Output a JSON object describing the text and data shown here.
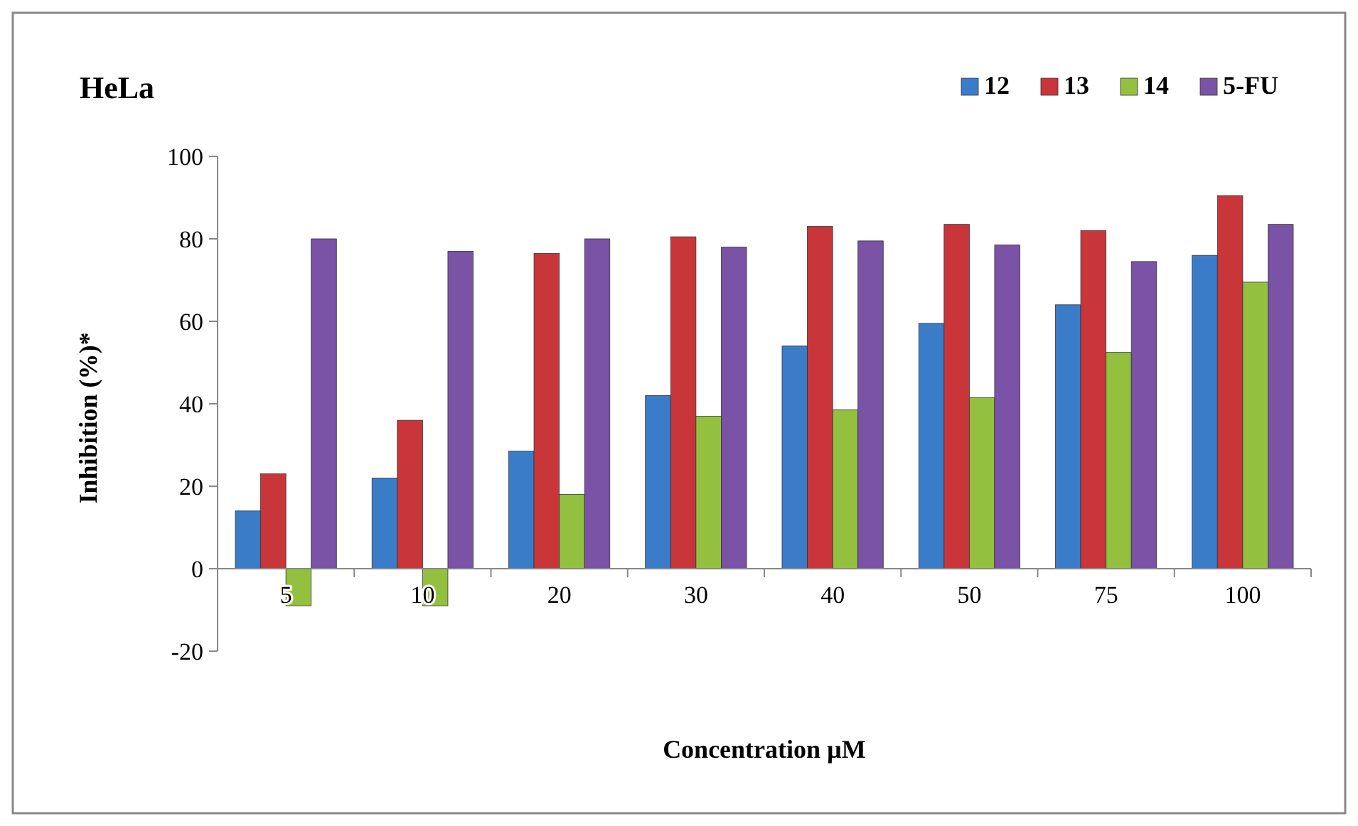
{
  "chart_data": {
    "type": "bar",
    "title": "HeLa",
    "xlabel": "Concentration µM",
    "ylabel": "Inhibition (%)*",
    "categories": [
      "5",
      "10",
      "20",
      "30",
      "40",
      "50",
      "75",
      "100"
    ],
    "series": [
      {
        "name": "12",
        "color": "#3a7cc8",
        "values": [
          14,
          22,
          28.5,
          42,
          54,
          59.5,
          64,
          76
        ]
      },
      {
        "name": "13",
        "color": "#c8363a",
        "values": [
          23,
          36,
          76.5,
          80.5,
          83,
          83.5,
          82,
          90.5
        ]
      },
      {
        "name": "14",
        "color": "#94c040",
        "values": [
          -9,
          -9,
          18,
          37,
          38.5,
          41.5,
          52.5,
          69.5
        ]
      },
      {
        "name": "5-FU",
        "color": "#7a52a6",
        "values": [
          80,
          77,
          80,
          78,
          79.5,
          78.5,
          74.5,
          83.5
        ]
      }
    ],
    "ylim": [
      -20,
      100
    ],
    "yticks": [
      -20,
      0,
      20,
      40,
      60,
      80,
      100
    ],
    "grid": false,
    "legend": "top right"
  }
}
